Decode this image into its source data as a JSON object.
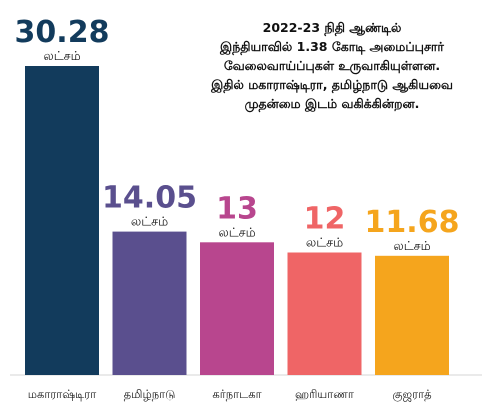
{
  "chart_data": {
    "type": "bar",
    "title": "",
    "xlabel": "",
    "ylabel": "",
    "ylim": [
      0,
      30.28
    ],
    "grid": false,
    "categories": [
      "மகாராஷ்டிரா",
      "தமிழ்நாடு",
      "கர்நாடகா",
      "ஹரியாணா",
      "குஜராத்"
    ],
    "values": [
      30.28,
      14.05,
      13,
      12,
      11.68
    ],
    "value_labels": [
      "30.28",
      "14.05",
      "13",
      "12",
      "11.68"
    ],
    "unit_label": "லட்சம்",
    "colors": [
      "#123b5c",
      "#5a4f8e",
      "#b8468e",
      "#ef6566",
      "#f5a51d"
    ],
    "annotation": [
      "2022-23 நிதி ஆண்டில்",
      "இந்தியாவில் 1.38 கோடி அமைப்புசார்",
      "வேலைவாய்ப்புகள் உருவாகியுள்ளன.",
      "இதில் மகாராஷ்டிரா, தமிழ்நாடு ஆகியவை",
      "முதன்மை இடம் வகிக்கின்றன."
    ]
  }
}
